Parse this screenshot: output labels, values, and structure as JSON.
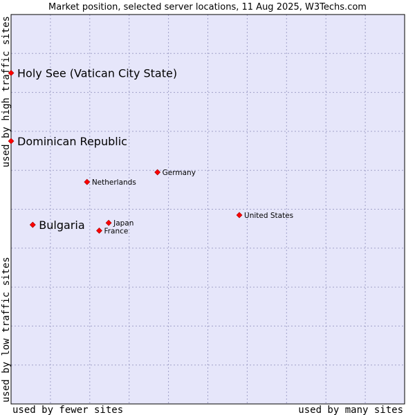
{
  "chart_data": {
    "type": "scatter",
    "title": "Market position, selected server locations, 11 Aug 2025, W3Techs.com",
    "xlabel_left": "used by fewer sites",
    "xlabel_right": "used by many sites",
    "ylabel_bottom": "used by low traffic sites",
    "ylabel_top": "used by high traffic sites",
    "xlim": [
      0,
      10
    ],
    "ylim": [
      0,
      10
    ],
    "grid": true,
    "colors": {
      "plot_bg": "#e6e6fa",
      "grid": "#a0a0c8",
      "marker": "#ff0000",
      "marker_edge": "#990000",
      "frame": "#000000"
    },
    "points": [
      {
        "name": "Holy See (Vatican City State)",
        "x": 0.0,
        "y": 8.5,
        "emphasis": true
      },
      {
        "name": "Dominican Republic",
        "x": 0.0,
        "y": 6.75,
        "emphasis": true
      },
      {
        "name": "Bulgaria",
        "x": 0.55,
        "y": 4.6,
        "emphasis": true
      },
      {
        "name": "Germany",
        "x": 3.72,
        "y": 5.95,
        "emphasis": false
      },
      {
        "name": "Netherlands",
        "x": 1.93,
        "y": 5.7,
        "emphasis": false
      },
      {
        "name": "Japan",
        "x": 2.48,
        "y": 4.65,
        "emphasis": false
      },
      {
        "name": "France",
        "x": 2.24,
        "y": 4.45,
        "emphasis": false
      },
      {
        "name": "United States",
        "x": 5.8,
        "y": 4.85,
        "emphasis": false
      }
    ]
  }
}
